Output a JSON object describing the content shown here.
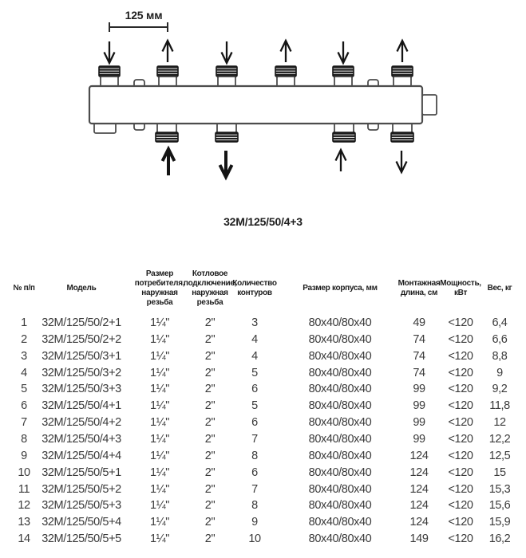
{
  "diagram": {
    "dimension_label": "125 мм",
    "title": "32M/125/50/4+3",
    "top_ports": 6,
    "bottom_threaded_ports": 4,
    "top_arrow_directions": [
      "down",
      "up",
      "down",
      "up",
      "down",
      "up"
    ],
    "bottom_arrow_directions": [
      "up",
      "down",
      "up",
      "down"
    ],
    "colors": {
      "outline": "#4c4c4c",
      "thread": "#1c1c1c",
      "arrow": "#141414"
    }
  },
  "table": {
    "headers": [
      "№ п/п",
      "Модель",
      "Размер\nпотребителя,\nнаружная\nрезьба",
      "Котловое\nподключение,\nнаружная\nрезьба",
      "Количество\nконтуров",
      "Размер корпуса, мм",
      "Монтажная\nдлина, см",
      "Мощность,\nкВт",
      "Вес, кг"
    ],
    "rows": [
      [
        "1",
        "32M/125/50/2+1",
        "1¼\"",
        "2\"",
        "3",
        "80x40/80x40",
        "49",
        "<120",
        "6,4"
      ],
      [
        "2",
        "32M/125/50/2+2",
        "1¼\"",
        "2\"",
        "4",
        "80x40/80x40",
        "74",
        "<120",
        "6,6"
      ],
      [
        "3",
        "32M/125/50/3+1",
        "1¼\"",
        "2\"",
        "4",
        "80x40/80x40",
        "74",
        "<120",
        "8,8"
      ],
      [
        "4",
        "32M/125/50/3+2",
        "1¼\"",
        "2\"",
        "5",
        "80x40/80x40",
        "74",
        "<120",
        "9"
      ],
      [
        "5",
        "32M/125/50/3+3",
        "1¼\"",
        "2\"",
        "6",
        "80x40/80x40",
        "99",
        "<120",
        "9,2"
      ],
      [
        "6",
        "32M/125/50/4+1",
        "1¼\"",
        "2\"",
        "5",
        "80x40/80x40",
        "99",
        "<120",
        "11,8"
      ],
      [
        "7",
        "32M/125/50/4+2",
        "1¼\"",
        "2\"",
        "6",
        "80x40/80x40",
        "99",
        "<120",
        "12"
      ],
      [
        "8",
        "32M/125/50/4+3",
        "1¼\"",
        "2\"",
        "7",
        "80x40/80x40",
        "99",
        "<120",
        "12,2"
      ],
      [
        "9",
        "32M/125/50/4+4",
        "1¼\"",
        "2\"",
        "8",
        "80x40/80x40",
        "124",
        "<120",
        "12,5"
      ],
      [
        "10",
        "32M/125/50/5+1",
        "1¼\"",
        "2\"",
        "6",
        "80x40/80x40",
        "124",
        "<120",
        "15"
      ],
      [
        "11",
        "32M/125/50/5+2",
        "1¼\"",
        "2\"",
        "7",
        "80x40/80x40",
        "124",
        "<120",
        "15,3"
      ],
      [
        "12",
        "32M/125/50/5+3",
        "1¼\"",
        "2\"",
        "8",
        "80x40/80x40",
        "124",
        "<120",
        "15,6"
      ],
      [
        "13",
        "32M/125/50/5+4",
        "1¼\"",
        "2\"",
        "9",
        "80x40/80x40",
        "124",
        "<120",
        "15,9"
      ],
      [
        "14",
        "32M/125/50/5+5",
        "1¼\"",
        "2\"",
        "10",
        "80x40/80x40",
        "149",
        "<120",
        "16,2"
      ]
    ]
  }
}
